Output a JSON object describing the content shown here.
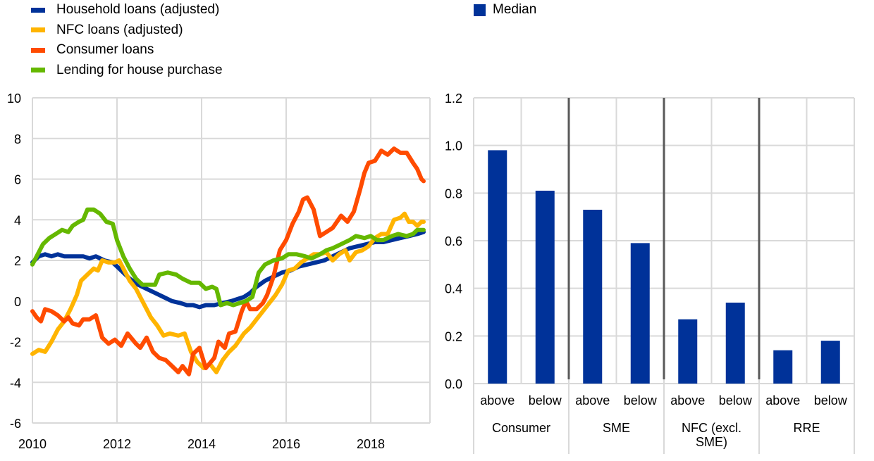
{
  "chart_data": [
    {
      "type": "line",
      "title": "",
      "xlabel": "",
      "ylabel": "",
      "xlim": [
        2010,
        2019.4
      ],
      "ylim": [
        -6,
        10
      ],
      "x_ticks": [
        2010,
        2012,
        2014,
        2016,
        2018
      ],
      "x_tick_labels": [
        "2010",
        "2012",
        "2014",
        "2016",
        "2018"
      ],
      "y_ticks": [
        -6,
        -4,
        -2,
        0,
        2,
        4,
        6,
        8,
        10
      ],
      "y_tick_labels": [
        "-6",
        "-4",
        "-2",
        "0",
        "2",
        "4",
        "6",
        "8",
        "10"
      ],
      "grid": true,
      "legend_position": "top-left",
      "series": [
        {
          "name": "Household loans (adjusted)",
          "color": "#003299",
          "points": [
            [
              2010.0,
              1.9
            ],
            [
              2010.15,
              2.2
            ],
            [
              2010.3,
              2.3
            ],
            [
              2010.45,
              2.2
            ],
            [
              2010.6,
              2.3
            ],
            [
              2010.75,
              2.2
            ],
            [
              2011.0,
              2.2
            ],
            [
              2011.2,
              2.2
            ],
            [
              2011.35,
              2.1
            ],
            [
              2011.5,
              2.2
            ],
            [
              2011.7,
              2.0
            ],
            [
              2011.9,
              1.9
            ],
            [
              2012.1,
              1.5
            ],
            [
              2012.3,
              1.1
            ],
            [
              2012.5,
              0.8
            ],
            [
              2012.7,
              0.6
            ],
            [
              2012.9,
              0.4
            ],
            [
              2013.1,
              0.2
            ],
            [
              2013.3,
              0.0
            ],
            [
              2013.5,
              -0.1
            ],
            [
              2013.65,
              -0.2
            ],
            [
              2013.8,
              -0.2
            ],
            [
              2013.95,
              -0.3
            ],
            [
              2014.1,
              -0.2
            ],
            [
              2014.3,
              -0.2
            ],
            [
              2014.5,
              -0.1
            ],
            [
              2014.7,
              0.0
            ],
            [
              2014.85,
              0.1
            ],
            [
              2015.0,
              0.2
            ],
            [
              2015.15,
              0.4
            ],
            [
              2015.3,
              0.7
            ],
            [
              2015.5,
              1.0
            ],
            [
              2015.7,
              1.2
            ],
            [
              2015.9,
              1.4
            ],
            [
              2016.1,
              1.5
            ],
            [
              2016.3,
              1.7
            ],
            [
              2016.5,
              1.8
            ],
            [
              2016.7,
              1.9
            ],
            [
              2016.9,
              2.0
            ],
            [
              2017.1,
              2.2
            ],
            [
              2017.3,
              2.4
            ],
            [
              2017.5,
              2.6
            ],
            [
              2017.7,
              2.7
            ],
            [
              2017.9,
              2.8
            ],
            [
              2018.1,
              2.9
            ],
            [
              2018.3,
              2.9
            ],
            [
              2018.5,
              3.0
            ],
            [
              2018.7,
              3.1
            ],
            [
              2018.9,
              3.2
            ],
            [
              2019.1,
              3.3
            ],
            [
              2019.25,
              3.4
            ]
          ]
        },
        {
          "name": "NFC loans (adjusted)",
          "color": "#FFB400",
          "points": [
            [
              2010.0,
              -2.6
            ],
            [
              2010.15,
              -2.4
            ],
            [
              2010.3,
              -2.5
            ],
            [
              2010.45,
              -2.0
            ],
            [
              2010.6,
              -1.4
            ],
            [
              2010.75,
              -1.0
            ],
            [
              2010.9,
              -0.4
            ],
            [
              2011.05,
              0.3
            ],
            [
              2011.15,
              1.0
            ],
            [
              2011.3,
              1.3
            ],
            [
              2011.45,
              1.6
            ],
            [
              2011.55,
              1.5
            ],
            [
              2011.65,
              2.0
            ],
            [
              2011.8,
              1.9
            ],
            [
              2011.95,
              1.9
            ],
            [
              2012.05,
              2.0
            ],
            [
              2012.15,
              1.6
            ],
            [
              2012.3,
              1.0
            ],
            [
              2012.45,
              0.6
            ],
            [
              2012.55,
              0.2
            ],
            [
              2012.7,
              -0.4
            ],
            [
              2012.8,
              -0.8
            ],
            [
              2012.95,
              -1.2
            ],
            [
              2013.1,
              -1.7
            ],
            [
              2013.25,
              -1.6
            ],
            [
              2013.45,
              -1.7
            ],
            [
              2013.6,
              -1.6
            ],
            [
              2013.75,
              -2.5
            ],
            [
              2013.9,
              -3.0
            ],
            [
              2014.05,
              -3.3
            ],
            [
              2014.2,
              -3.1
            ],
            [
              2014.35,
              -3.5
            ],
            [
              2014.5,
              -2.9
            ],
            [
              2014.65,
              -2.5
            ],
            [
              2014.8,
              -2.2
            ],
            [
              2015.0,
              -1.6
            ],
            [
              2015.15,
              -1.3
            ],
            [
              2015.3,
              -0.9
            ],
            [
              2015.45,
              -0.5
            ],
            [
              2015.6,
              -0.1
            ],
            [
              2015.75,
              0.3
            ],
            [
              2015.9,
              0.8
            ],
            [
              2016.05,
              1.5
            ],
            [
              2016.2,
              1.6
            ],
            [
              2016.35,
              1.9
            ],
            [
              2016.5,
              2.1
            ],
            [
              2016.65,
              2.3
            ],
            [
              2016.8,
              2.3
            ],
            [
              2016.95,
              2.4
            ],
            [
              2017.1,
              2.0
            ],
            [
              2017.25,
              2.3
            ],
            [
              2017.4,
              2.5
            ],
            [
              2017.5,
              2.0
            ],
            [
              2017.65,
              2.4
            ],
            [
              2017.8,
              2.5
            ],
            [
              2017.95,
              2.7
            ],
            [
              2018.1,
              3.1
            ],
            [
              2018.25,
              3.3
            ],
            [
              2018.4,
              3.3
            ],
            [
              2018.55,
              4.0
            ],
            [
              2018.7,
              4.1
            ],
            [
              2018.8,
              4.3
            ],
            [
              2018.9,
              3.9
            ],
            [
              2019.0,
              3.9
            ],
            [
              2019.1,
              3.7
            ],
            [
              2019.2,
              3.9
            ],
            [
              2019.25,
              3.9
            ]
          ]
        },
        {
          "name": "Consumer loans",
          "color": "#FF4B00",
          "points": [
            [
              2010.0,
              -0.5
            ],
            [
              2010.1,
              -0.8
            ],
            [
              2010.2,
              -1.0
            ],
            [
              2010.3,
              -0.4
            ],
            [
              2010.45,
              -0.5
            ],
            [
              2010.6,
              -0.7
            ],
            [
              2010.75,
              -1.0
            ],
            [
              2010.85,
              -0.8
            ],
            [
              2010.95,
              -1.1
            ],
            [
              2011.1,
              -1.2
            ],
            [
              2011.2,
              -0.9
            ],
            [
              2011.35,
              -0.9
            ],
            [
              2011.5,
              -0.7
            ],
            [
              2011.65,
              -1.8
            ],
            [
              2011.8,
              -2.1
            ],
            [
              2011.95,
              -1.9
            ],
            [
              2012.1,
              -2.2
            ],
            [
              2012.25,
              -1.6
            ],
            [
              2012.45,
              -2.1
            ],
            [
              2012.55,
              -2.3
            ],
            [
              2012.7,
              -1.8
            ],
            [
              2012.85,
              -2.5
            ],
            [
              2013.0,
              -2.8
            ],
            [
              2013.15,
              -2.9
            ],
            [
              2013.3,
              -3.2
            ],
            [
              2013.45,
              -3.5
            ],
            [
              2013.55,
              -3.2
            ],
            [
              2013.7,
              -3.6
            ],
            [
              2013.8,
              -2.6
            ],
            [
              2013.95,
              -2.3
            ],
            [
              2014.1,
              -3.3
            ],
            [
              2014.3,
              -2.8
            ],
            [
              2014.4,
              -2.0
            ],
            [
              2014.55,
              -2.3
            ],
            [
              2014.65,
              -1.6
            ],
            [
              2014.8,
              -1.5
            ],
            [
              2014.95,
              -0.5
            ],
            [
              2015.05,
              0.0
            ],
            [
              2015.15,
              -0.4
            ],
            [
              2015.3,
              -0.4
            ],
            [
              2015.45,
              -0.1
            ],
            [
              2015.55,
              0.3
            ],
            [
              2015.7,
              1.2
            ],
            [
              2015.85,
              2.5
            ],
            [
              2016.0,
              3.0
            ],
            [
              2016.15,
              3.8
            ],
            [
              2016.3,
              4.4
            ],
            [
              2016.4,
              5.0
            ],
            [
              2016.5,
              5.1
            ],
            [
              2016.65,
              4.5
            ],
            [
              2016.8,
              3.2
            ],
            [
              2016.95,
              3.4
            ],
            [
              2017.1,
              3.6
            ],
            [
              2017.3,
              4.2
            ],
            [
              2017.45,
              3.9
            ],
            [
              2017.6,
              4.4
            ],
            [
              2017.75,
              5.5
            ],
            [
              2017.85,
              6.3
            ],
            [
              2017.95,
              6.8
            ],
            [
              2018.1,
              6.9
            ],
            [
              2018.25,
              7.4
            ],
            [
              2018.4,
              7.2
            ],
            [
              2018.55,
              7.5
            ],
            [
              2018.7,
              7.3
            ],
            [
              2018.85,
              7.3
            ],
            [
              2019.0,
              6.8
            ],
            [
              2019.1,
              6.5
            ],
            [
              2019.2,
              6.0
            ],
            [
              2019.25,
              5.9
            ]
          ]
        },
        {
          "name": "Lending for house purchase",
          "color": "#65B800",
          "points": [
            [
              2010.0,
              1.8
            ],
            [
              2010.1,
              2.2
            ],
            [
              2010.25,
              2.8
            ],
            [
              2010.4,
              3.1
            ],
            [
              2010.55,
              3.3
            ],
            [
              2010.7,
              3.5
            ],
            [
              2010.85,
              3.4
            ],
            [
              2010.95,
              3.7
            ],
            [
              2011.1,
              3.9
            ],
            [
              2011.2,
              4.0
            ],
            [
              2011.3,
              4.5
            ],
            [
              2011.45,
              4.5
            ],
            [
              2011.6,
              4.3
            ],
            [
              2011.75,
              3.9
            ],
            [
              2011.9,
              3.8
            ],
            [
              2012.0,
              3.0
            ],
            [
              2012.15,
              2.2
            ],
            [
              2012.3,
              1.6
            ],
            [
              2012.45,
              1.1
            ],
            [
              2012.6,
              0.8
            ],
            [
              2012.75,
              0.8
            ],
            [
              2012.9,
              0.8
            ],
            [
              2013.0,
              1.3
            ],
            [
              2013.2,
              1.4
            ],
            [
              2013.4,
              1.3
            ],
            [
              2013.55,
              1.1
            ],
            [
              2013.75,
              0.9
            ],
            [
              2013.95,
              0.9
            ],
            [
              2014.1,
              0.6
            ],
            [
              2014.25,
              0.7
            ],
            [
              2014.35,
              0.6
            ],
            [
              2014.45,
              -0.2
            ],
            [
              2014.6,
              -0.1
            ],
            [
              2014.75,
              -0.2
            ],
            [
              2014.9,
              -0.1
            ],
            [
              2015.05,
              0.0
            ],
            [
              2015.2,
              0.2
            ],
            [
              2015.35,
              1.4
            ],
            [
              2015.5,
              1.8
            ],
            [
              2015.7,
              2.0
            ],
            [
              2015.9,
              2.1
            ],
            [
              2016.05,
              2.3
            ],
            [
              2016.25,
              2.3
            ],
            [
              2016.45,
              2.2
            ],
            [
              2016.6,
              2.1
            ],
            [
              2016.8,
              2.3
            ],
            [
              2016.95,
              2.5
            ],
            [
              2017.1,
              2.6
            ],
            [
              2017.3,
              2.8
            ],
            [
              2017.5,
              3.0
            ],
            [
              2017.65,
              3.2
            ],
            [
              2017.85,
              3.1
            ],
            [
              2018.0,
              3.2
            ],
            [
              2018.15,
              3.0
            ],
            [
              2018.3,
              3.0
            ],
            [
              2018.5,
              3.2
            ],
            [
              2018.65,
              3.3
            ],
            [
              2018.85,
              3.2
            ],
            [
              2019.0,
              3.3
            ],
            [
              2019.1,
              3.5
            ],
            [
              2019.25,
              3.5
            ]
          ]
        }
      ]
    },
    {
      "type": "bar",
      "title": "",
      "xlabel": "",
      "ylabel": "",
      "ylim": [
        0.0,
        1.2
      ],
      "y_ticks": [
        0.0,
        0.2,
        0.4,
        0.6,
        0.8,
        1.0,
        1.2
      ],
      "y_tick_labels": [
        "0.0",
        "0.2",
        "0.4",
        "0.6",
        "0.8",
        "1.0",
        "1.2"
      ],
      "grid": true,
      "legend_position": "top-left",
      "groups": [
        "Consumer",
        "SME",
        "NFC (excl. SME)",
        "RRE"
      ],
      "categories": [
        "above",
        "below",
        "above",
        "below",
        "above",
        "below",
        "above",
        "below"
      ],
      "series": [
        {
          "name": "Median",
          "color": "#003299",
          "values": [
            0.98,
            0.81,
            0.73,
            0.59,
            0.27,
            0.34,
            0.14,
            0.18
          ]
        }
      ]
    }
  ]
}
